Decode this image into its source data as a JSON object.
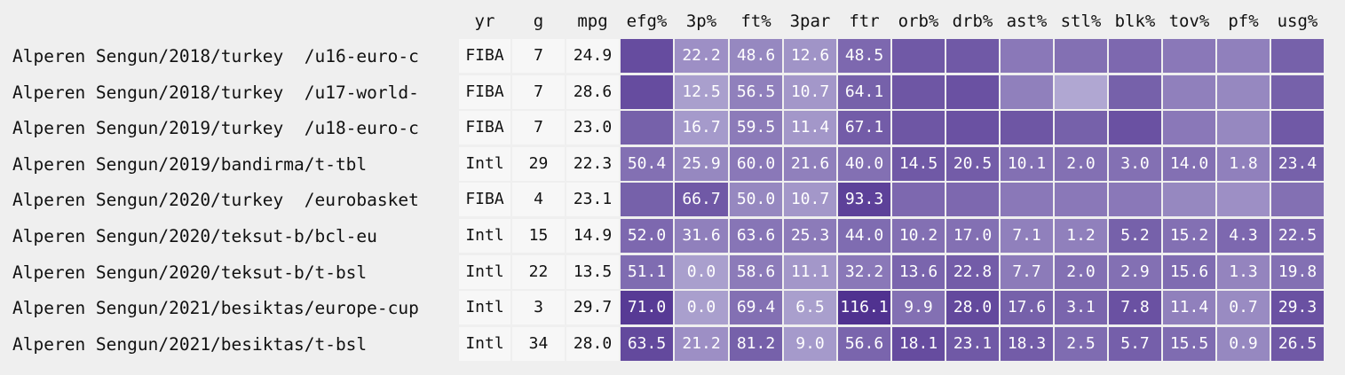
{
  "chart_data": {
    "type": "heatmap",
    "columns": [
      "yr",
      "g",
      "mpg",
      "efg%",
      "3p%",
      "ft%",
      "3par",
      "ftr",
      "orb%",
      "drb%",
      "ast%",
      "stl%",
      "blk%",
      "tov%",
      "pf%",
      "usg%"
    ],
    "rows": [
      {
        "label": "Alperen Sengun/2018/turkey  /u16-euro-c",
        "values": [
          "FIBA",
          "7",
          "24.9",
          "",
          "22.2",
          "48.6",
          "12.6",
          "48.5",
          "",
          "",
          "",
          "",
          "",
          "",
          "",
          ""
        ],
        "shade": [
          null,
          null,
          null,
          0.78,
          0.35,
          0.4,
          0.32,
          0.6,
          0.7,
          0.7,
          0.5,
          0.55,
          0.6,
          0.5,
          0.45,
          0.65
        ]
      },
      {
        "label": "Alperen Sengun/2018/turkey  /u17-world-",
        "values": [
          "FIBA",
          "7",
          "28.6",
          "",
          "12.5",
          "56.5",
          "10.7",
          "64.1",
          "",
          "",
          "",
          "",
          "",
          "",
          "",
          ""
        ],
        "shade": [
          null,
          null,
          null,
          0.78,
          0.25,
          0.45,
          0.3,
          0.65,
          0.72,
          0.75,
          0.45,
          0.2,
          0.65,
          0.45,
          0.4,
          0.65
        ]
      },
      {
        "label": "Alperen Sengun/2019/turkey  /u18-euro-c",
        "values": [
          "FIBA",
          "7",
          "23.0",
          "",
          "16.7",
          "59.5",
          "11.4",
          "67.1",
          "",
          "",
          "",
          "",
          "",
          "",
          "",
          ""
        ],
        "shade": [
          null,
          null,
          null,
          0.65,
          0.28,
          0.48,
          0.3,
          0.68,
          0.72,
          0.75,
          0.72,
          0.65,
          0.75,
          0.5,
          0.4,
          0.7
        ]
      },
      {
        "label": "Alperen Sengun/2019/bandirma/t-tbl",
        "values": [
          "Intl",
          "29",
          "22.3",
          "50.4",
          "25.9",
          "60.0",
          "21.6",
          "40.0",
          "14.5",
          "20.5",
          "10.1",
          "2.0",
          "3.0",
          "14.0",
          "1.8",
          "23.4"
        ],
        "shade": [
          null,
          null,
          null,
          0.55,
          0.4,
          0.5,
          0.45,
          0.55,
          0.7,
          0.68,
          0.55,
          0.55,
          0.55,
          0.55,
          0.45,
          0.65
        ]
      },
      {
        "label": "Alperen Sengun/2020/turkey  /eurobasket",
        "values": [
          "FIBA",
          "4",
          "23.1",
          "",
          "66.7",
          "50.0",
          "10.7",
          "93.3",
          "",
          "",
          "",
          "",
          "",
          "",
          "",
          ""
        ],
        "shade": [
          null,
          null,
          null,
          0.65,
          0.7,
          0.4,
          0.3,
          0.85,
          0.6,
          0.6,
          0.5,
          0.5,
          0.5,
          0.4,
          0.35,
          0.55
        ]
      },
      {
        "label": "Alperen Sengun/2020/teksut-b/bcl-eu",
        "values": [
          "Intl",
          "15",
          "14.9",
          "52.0",
          "31.6",
          "63.6",
          "25.3",
          "44.0",
          "10.2",
          "17.0",
          "7.1",
          "1.2",
          "5.2",
          "15.2",
          "4.3",
          "22.5"
        ],
        "shade": [
          null,
          null,
          null,
          0.6,
          0.45,
          0.52,
          0.48,
          0.58,
          0.55,
          0.55,
          0.45,
          0.45,
          0.65,
          0.55,
          0.6,
          0.6
        ]
      },
      {
        "label": "Alperen Sengun/2020/teksut-b/t-bsl",
        "values": [
          "Intl",
          "22",
          "13.5",
          "51.1",
          "0.0",
          "58.6",
          "11.1",
          "32.2",
          "13.6",
          "22.8",
          "7.7",
          "2.0",
          "2.9",
          "15.6",
          "1.3",
          "19.8"
        ],
        "shade": [
          null,
          null,
          null,
          0.58,
          0.25,
          0.48,
          0.3,
          0.5,
          0.62,
          0.68,
          0.48,
          0.55,
          0.55,
          0.58,
          0.42,
          0.55
        ]
      },
      {
        "label": "Alperen Sengun/2021/besiktas/europe-cup",
        "values": [
          "Intl",
          "3",
          "29.7",
          "71.0",
          "0.0",
          "69.4",
          "6.5",
          "116.1",
          "9.9",
          "28.0",
          "17.6",
          "3.1",
          "7.8",
          "11.4",
          "0.7",
          "29.3"
        ],
        "shade": [
          null,
          null,
          null,
          0.9,
          0.25,
          0.55,
          0.25,
          0.95,
          0.55,
          0.8,
          0.65,
          0.62,
          0.75,
          0.45,
          0.38,
          0.75
        ]
      },
      {
        "label": "Alperen Sengun/2021/besiktas/t-bsl",
        "values": [
          "Intl",
          "34",
          "28.0",
          "63.5",
          "21.2",
          "81.2",
          "9.0",
          "56.6",
          "18.1",
          "23.1",
          "18.3",
          "2.5",
          "5.7",
          "15.5",
          "0.9",
          "26.5"
        ],
        "shade": [
          null,
          null,
          null,
          0.8,
          0.35,
          0.65,
          0.28,
          0.62,
          0.78,
          0.7,
          0.68,
          0.58,
          0.66,
          0.58,
          0.4,
          0.7
        ]
      }
    ],
    "color_scale": {
      "low": "#c9c6e3",
      "high": "#4a2a8c"
    },
    "plain_cell_color": "#f7f7f7",
    "background": "#efefef"
  }
}
